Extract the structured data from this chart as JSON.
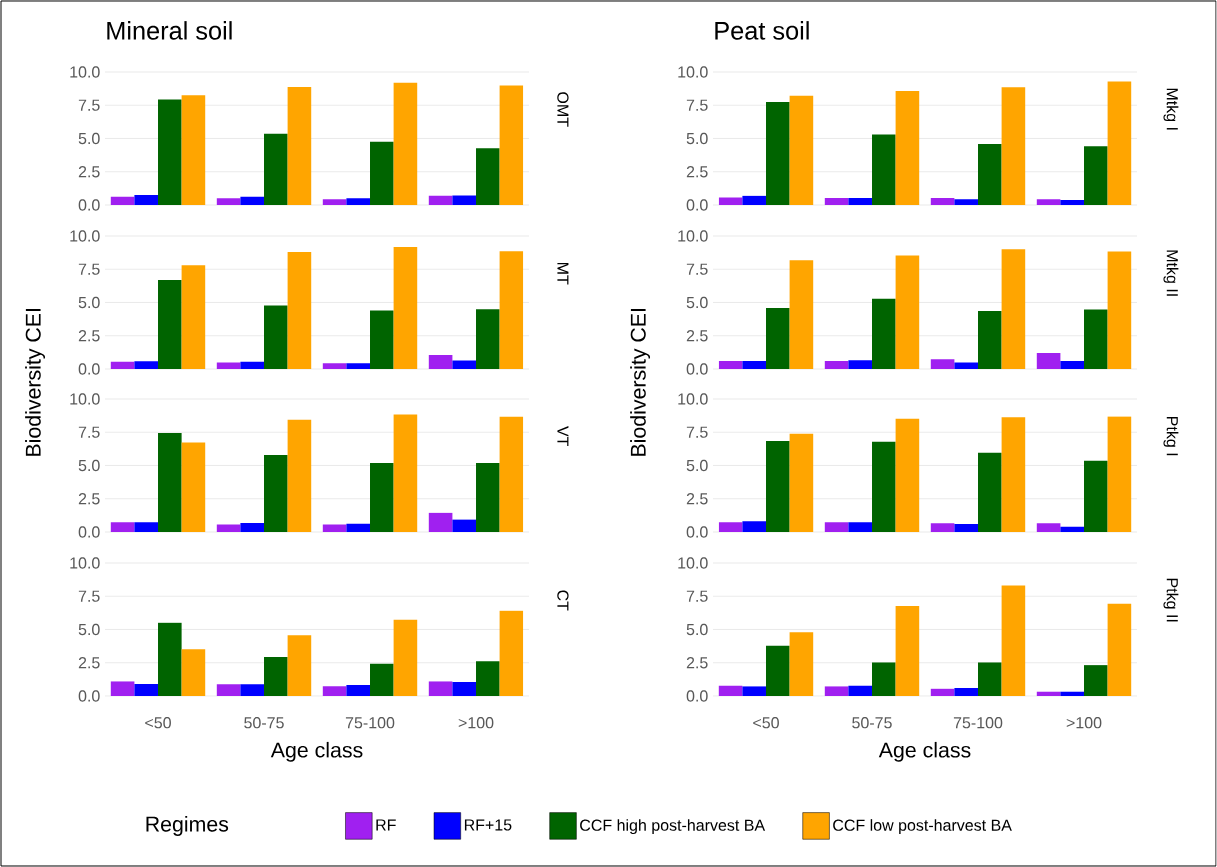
{
  "chart_data": [
    {
      "type": "bar",
      "title": "Mineral soil",
      "y2label": "OMT",
      "categories": [
        null,
        null,
        null,
        null
      ],
      "tick_labels": "y",
      "ylim": [
        0,
        10
      ],
      "yticks": [
        {
          "value": 0,
          "label": "0.0"
        },
        {
          "value": 2.5,
          "label": "2.5"
        },
        {
          "value": 5,
          "label": "5.0"
        },
        {
          "value": 7.5,
          "label": "7.5"
        },
        {
          "value": 10,
          "label": "10.0"
        }
      ],
      "grid": "y",
      "series": [
        {
          "color": "#a020f0",
          "values": [
            0.62,
            0.51,
            0.43,
            0.72
          ]
        },
        {
          "color": "#0000ff",
          "values": [
            0.75,
            0.62,
            0.51,
            0.72
          ]
        },
        {
          "color": "#006400",
          "values": [
            7.94,
            5.36,
            4.75,
            4.26
          ]
        },
        {
          "color": "#ffa500",
          "values": [
            8.26,
            8.87,
            9.2,
            8.98
          ]
        }
      ]
    },
    {
      "type": "bar",
      "title": "Peat soil",
      "y2label": "Mtkg I",
      "categories": [
        null,
        null,
        null,
        null
      ],
      "tick_labels": "y",
      "ylim": [
        0,
        10
      ],
      "yticks": [
        {
          "value": 0,
          "label": "0.0"
        },
        {
          "value": 2.5,
          "label": "2.5"
        },
        {
          "value": 5,
          "label": "5.0"
        },
        {
          "value": 7.5,
          "label": "7.5"
        },
        {
          "value": 10,
          "label": "10.0"
        }
      ],
      "grid": "y",
      "series": [
        {
          "color": "#a020f0",
          "values": [
            0.57,
            0.52,
            0.52,
            0.43
          ]
        },
        {
          "color": "#0000ff",
          "values": [
            0.69,
            0.52,
            0.43,
            0.37
          ]
        },
        {
          "color": "#006400",
          "values": [
            7.74,
            5.3,
            4.58,
            4.41
          ]
        },
        {
          "color": "#ffa500",
          "values": [
            8.22,
            8.57,
            8.85,
            9.28
          ]
        }
      ]
    },
    {
      "type": "bar",
      "y2label": "MT",
      "ylabel": "Biodiversity CEI",
      "categories": [
        null,
        null,
        null,
        null
      ],
      "tick_labels": "y",
      "ylim": [
        0,
        10
      ],
      "yticks": [
        {
          "value": 0,
          "label": "0.0"
        },
        {
          "value": 2.5,
          "label": "2.5"
        },
        {
          "value": 5,
          "label": "5.0"
        },
        {
          "value": 7.5,
          "label": "7.5"
        },
        {
          "value": 10,
          "label": "10.0"
        }
      ],
      "grid": "y",
      "series": [
        {
          "color": "#a020f0",
          "values": [
            0.54,
            0.48,
            0.43,
            1.05
          ]
        },
        {
          "color": "#0000ff",
          "values": [
            0.59,
            0.54,
            0.43,
            0.64
          ]
        },
        {
          "color": "#006400",
          "values": [
            6.7,
            4.77,
            4.4,
            4.5
          ]
        },
        {
          "color": "#ffa500",
          "values": [
            7.8,
            8.79,
            9.17,
            8.85
          ]
        }
      ]
    },
    {
      "type": "bar",
      "y2label": "Mtkg II",
      "ylabel": "Biodiversity CEI",
      "categories": [
        null,
        null,
        null,
        null
      ],
      "tick_labels": "y",
      "ylim": [
        0,
        10
      ],
      "yticks": [
        {
          "value": 0,
          "label": "0.0"
        },
        {
          "value": 2.5,
          "label": "2.5"
        },
        {
          "value": 5,
          "label": "5.0"
        },
        {
          "value": 7.5,
          "label": "7.5"
        },
        {
          "value": 10,
          "label": "10.0"
        }
      ],
      "grid": "y",
      "series": [
        {
          "color": "#a020f0",
          "values": [
            0.6,
            0.6,
            0.74,
            1.2
          ]
        },
        {
          "color": "#0000ff",
          "values": [
            0.6,
            0.66,
            0.49,
            0.6
          ]
        },
        {
          "color": "#006400",
          "values": [
            4.58,
            5.3,
            4.36,
            4.47
          ]
        },
        {
          "color": "#ffa500",
          "values": [
            8.17,
            8.54,
            9.0,
            8.83
          ]
        }
      ]
    },
    {
      "type": "bar",
      "y2label": "VT",
      "categories": [
        null,
        null,
        null,
        null
      ],
      "tick_labels": "y",
      "ylim": [
        0,
        10
      ],
      "yticks": [
        {
          "value": 0,
          "label": "0.0"
        },
        {
          "value": 2.5,
          "label": "2.5"
        },
        {
          "value": 5,
          "label": "5.0"
        },
        {
          "value": 7.5,
          "label": "7.5"
        },
        {
          "value": 10,
          "label": "10.0"
        }
      ],
      "grid": "y",
      "series": [
        {
          "color": "#a020f0",
          "values": [
            0.73,
            0.56,
            0.56,
            1.45
          ]
        },
        {
          "color": "#0000ff",
          "values": [
            0.73,
            0.67,
            0.62,
            0.94
          ]
        },
        {
          "color": "#006400",
          "values": [
            7.45,
            5.78,
            5.19,
            5.19
          ]
        },
        {
          "color": "#ffa500",
          "values": [
            6.72,
            8.44,
            8.84,
            8.66
          ]
        }
      ]
    },
    {
      "type": "bar",
      "y2label": "Ptkg I",
      "categories": [
        null,
        null,
        null,
        null
      ],
      "tick_labels": "y",
      "ylim": [
        0,
        10
      ],
      "yticks": [
        {
          "value": 0,
          "label": "0.0"
        },
        {
          "value": 2.5,
          "label": "2.5"
        },
        {
          "value": 5,
          "label": "5.0"
        },
        {
          "value": 7.5,
          "label": "7.5"
        },
        {
          "value": 10,
          "label": "10.0"
        }
      ],
      "grid": "y",
      "series": [
        {
          "color": "#a020f0",
          "values": [
            0.74,
            0.74,
            0.66,
            0.66
          ]
        },
        {
          "color": "#0000ff",
          "values": [
            0.8,
            0.74,
            0.6,
            0.4
          ]
        },
        {
          "color": "#006400",
          "values": [
            6.85,
            6.79,
            5.96,
            5.36
          ]
        },
        {
          "color": "#ffa500",
          "values": [
            7.39,
            8.51,
            8.62,
            8.68
          ]
        }
      ]
    },
    {
      "type": "bar",
      "y2label": "CT",
      "xlabel": "Age class",
      "categories": [
        "<50",
        "50-75",
        "75-100",
        ">100"
      ],
      "ylim": [
        0,
        10
      ],
      "yticks": [
        {
          "value": 0,
          "label": "0.0"
        },
        {
          "value": 2.5,
          "label": "2.5"
        },
        {
          "value": 5,
          "label": "5.0"
        },
        {
          "value": 7.5,
          "label": "7.5"
        },
        {
          "value": 10,
          "label": "10.0"
        }
      ],
      "grid": "y",
      "series": [
        {
          "color": "#a020f0",
          "values": [
            1.1,
            0.89,
            0.73,
            1.1
          ]
        },
        {
          "color": "#0000ff",
          "values": [
            0.91,
            0.89,
            0.83,
            1.05
          ]
        },
        {
          "color": "#006400",
          "values": [
            5.51,
            2.93,
            2.42,
            2.61
          ]
        },
        {
          "color": "#ffa500",
          "values": [
            3.52,
            4.57,
            5.73,
            6.4
          ]
        }
      ]
    },
    {
      "type": "bar",
      "y2label": "Ptkg II",
      "xlabel": "Age class",
      "categories": [
        "<50",
        "50-75",
        "75-100",
        ">100"
      ],
      "ylim": [
        0,
        10
      ],
      "yticks": [
        {
          "value": 0,
          "label": "0.0"
        },
        {
          "value": 2.5,
          "label": "2.5"
        },
        {
          "value": 5,
          "label": "5.0"
        },
        {
          "value": 7.5,
          "label": "7.5"
        },
        {
          "value": 10,
          "label": "10.0"
        }
      ],
      "grid": "y",
      "legend": "bottom",
      "legend_title": "Regimes",
      "series": [
        {
          "name": "RF",
          "color": "#a020f0",
          "values": [
            0.77,
            0.72,
            0.54,
            0.32
          ]
        },
        {
          "name": "RF+15",
          "color": "#0000ff",
          "values": [
            0.72,
            0.77,
            0.6,
            0.32
          ]
        },
        {
          "name": "CCF high post-harvest BA",
          "color": "#006400",
          "values": [
            3.78,
            2.52,
            2.52,
            2.32
          ]
        },
        {
          "name": "CCF low post-harvest BA",
          "color": "#ffa500",
          "values": [
            4.79,
            6.76,
            8.31,
            6.93
          ]
        }
      ]
    }
  ]
}
